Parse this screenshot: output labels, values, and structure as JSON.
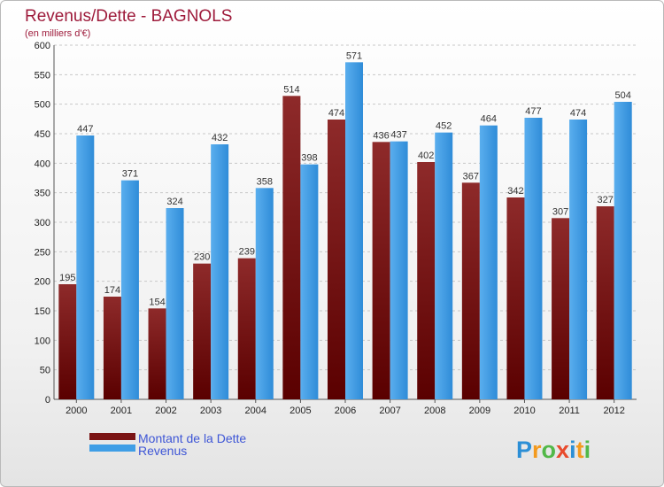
{
  "chart_data": {
    "type": "bar",
    "title": "Revenus/Dette - BAGNOLS",
    "subtitle": "(en milliers d'€)",
    "categories": [
      "2000",
      "2001",
      "2002",
      "2003",
      "2004",
      "2005",
      "2006",
      "2007",
      "2008",
      "2009",
      "2010",
      "2011",
      "2012"
    ],
    "series": [
      {
        "name": "Montant de la Dette",
        "color": "#7a1414",
        "values": [
          195,
          174,
          154,
          230,
          239,
          514,
          474,
          436,
          402,
          367,
          342,
          307,
          327
        ]
      },
      {
        "name": "Revenus",
        "color": "#3f9ee6",
        "values": [
          447,
          371,
          324,
          432,
          358,
          398,
          571,
          437,
          452,
          464,
          477,
          474,
          504
        ]
      }
    ],
    "ylim": [
      0,
      600
    ],
    "yticks": [
      0,
      50,
      100,
      150,
      200,
      250,
      300,
      350,
      400,
      450,
      500,
      550,
      600
    ],
    "grid": true,
    "legend": "bottom-left"
  },
  "logo": {
    "text": "Proxiti",
    "letters": [
      {
        "ch": "P",
        "color": "#2c8fd6"
      },
      {
        "ch": "r",
        "color": "#f39a1e"
      },
      {
        "ch": "o",
        "color": "#52b848"
      },
      {
        "ch": "x",
        "color": "#e84a2c"
      },
      {
        "ch": "i",
        "color": "#2c8fd6"
      },
      {
        "ch": "t",
        "color": "#f39a1e"
      },
      {
        "ch": "i",
        "color": "#52b848"
      }
    ]
  }
}
